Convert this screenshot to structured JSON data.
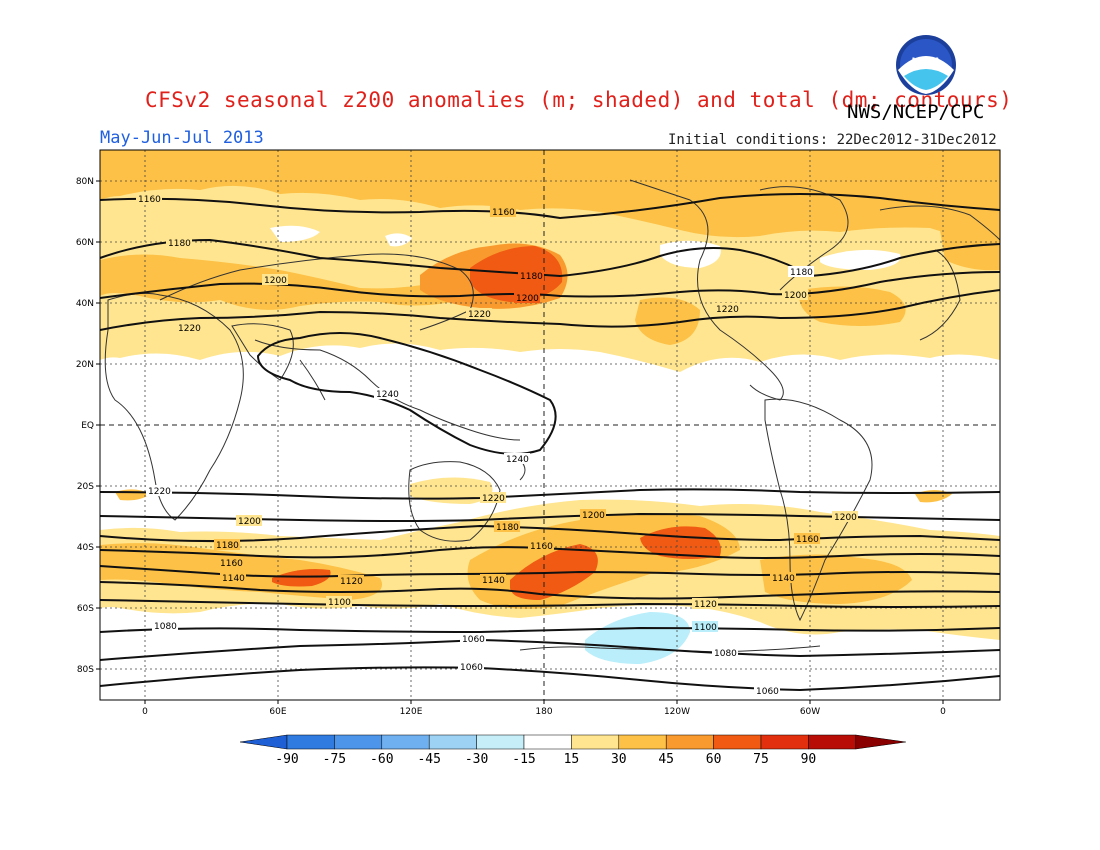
{
  "title": "CFSv2 seasonal z200 anomalies (m; shaded) and total (dm; contours)",
  "agency": "NWS/NCEP/CPC",
  "logo_text": "NOAA",
  "period": "May-Jun-Jul 2013",
  "initial_conditions": "Initial conditions: 22Dec2012-31Dec2012",
  "lat_labels": [
    "80N",
    "60N",
    "40N",
    "20N",
    "EQ",
    "20S",
    "40S",
    "60S",
    "80S"
  ],
  "lon_labels": [
    "0",
    "60E",
    "120E",
    "180",
    "120W",
    "60W",
    "0"
  ],
  "colorbar": {
    "labels": [
      "-90",
      "-75",
      "-60",
      "-45",
      "-30",
      "-15",
      "15",
      "30",
      "45",
      "60",
      "75",
      "90"
    ],
    "colors": [
      "#1f5fd6",
      "#2f7be0",
      "#4c95ea",
      "#6fb0f0",
      "#9ed2f5",
      "#c5eef8",
      "#ffffff",
      "#ffe58f",
      "#fcc146",
      "#f99a2e",
      "#f05a12",
      "#e2300e",
      "#b80d06",
      "#8a0000"
    ]
  },
  "contour_labels": [
    "1160",
    "1160",
    "1180",
    "1180",
    "1180",
    "1200",
    "1200",
    "1200",
    "1220",
    "1220",
    "1220",
    "1240",
    "1240",
    "1220",
    "1220",
    "1200",
    "1200",
    "1200",
    "1180",
    "1180",
    "1160",
    "1160",
    "1160",
    "1140",
    "1140",
    "1140",
    "1120",
    "1120",
    "1100",
    "1100",
    "1080",
    "1080",
    "1060",
    "1060",
    "1060"
  ]
}
